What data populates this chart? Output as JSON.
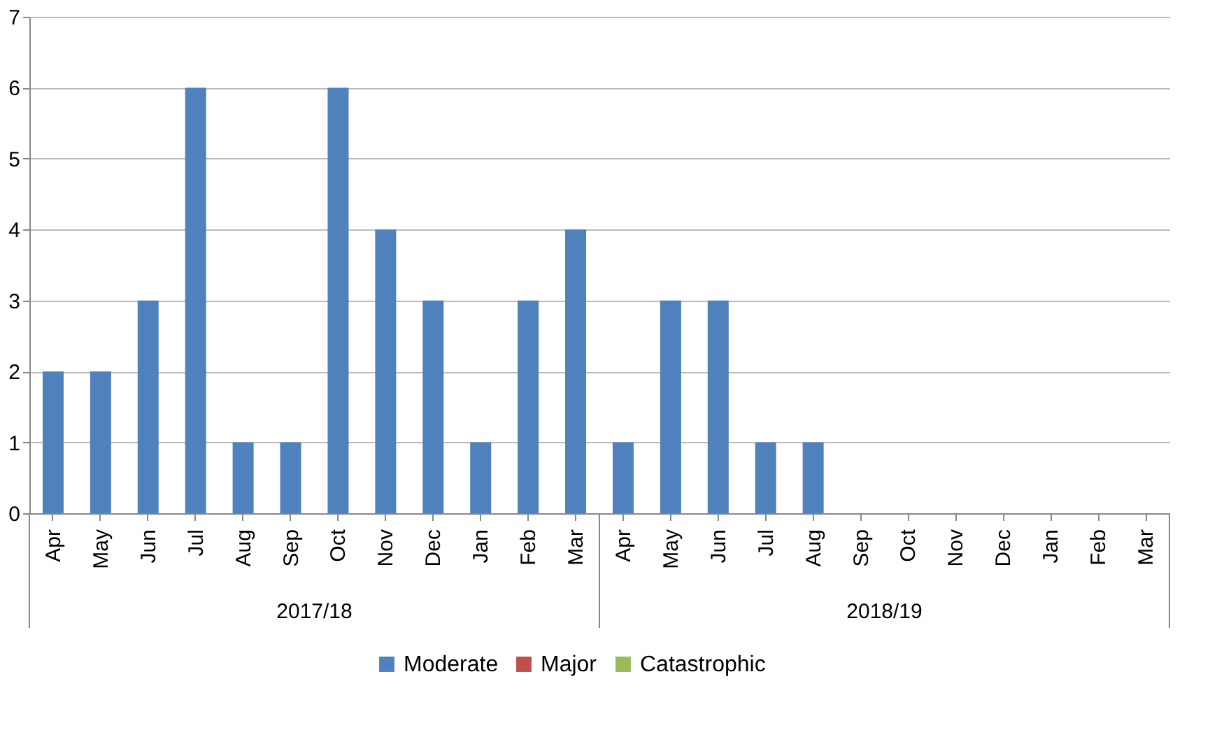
{
  "chart_data": {
    "type": "bar",
    "stacked": true,
    "categories": [
      "Apr",
      "May",
      "Jun",
      "Jul",
      "Aug",
      "Sep",
      "Oct",
      "Nov",
      "Dec",
      "Jan",
      "Feb",
      "Mar",
      "Apr",
      "May",
      "Jun",
      "Jul",
      "Aug",
      "Sep",
      "Oct",
      "Nov",
      "Dec",
      "Jan",
      "Feb",
      "Mar"
    ],
    "series": [
      {
        "name": "Moderate",
        "color": "#4f81bd",
        "values": [
          2,
          2,
          3,
          6,
          1,
          1,
          6,
          4,
          3,
          1,
          3,
          4,
          1,
          3,
          3,
          1,
          1,
          0,
          0,
          0,
          0,
          0,
          0,
          0
        ]
      },
      {
        "name": "Major",
        "color": "#c0504d",
        "values": [
          0,
          0,
          0,
          0,
          0,
          0,
          0,
          0,
          0,
          0,
          0,
          0,
          0,
          0,
          0,
          0,
          0,
          0,
          0,
          0,
          0,
          0,
          0,
          0
        ]
      },
      {
        "name": "Catastrophic",
        "color": "#9bbb59",
        "values": [
          0,
          0,
          0,
          0,
          0,
          0,
          0,
          0,
          0,
          0,
          0,
          0,
          0,
          0,
          0,
          0,
          0,
          0,
          0,
          0,
          0,
          0,
          0,
          0
        ]
      }
    ],
    "ylim": [
      0,
      7
    ],
    "yticks": [
      0,
      1,
      2,
      3,
      4,
      5,
      6,
      7
    ],
    "grid": "y",
    "legend": "bottom",
    "annotations": [
      "2017/18",
      "2018/19"
    ]
  }
}
